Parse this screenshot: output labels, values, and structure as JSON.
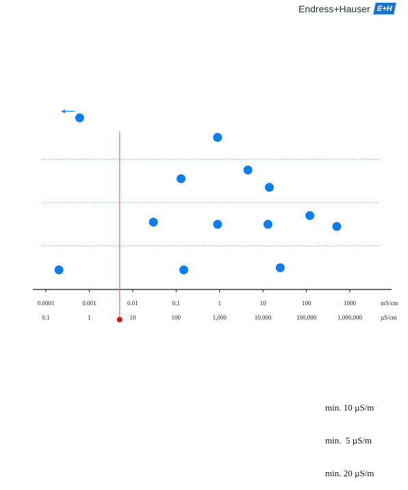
{
  "brand": {
    "name": "Endress+Hauser",
    "mark": "E+H",
    "logo_color": "#1a73c8"
  },
  "chart_data": {
    "type": "scatter",
    "title": "",
    "xlabel": "",
    "ylabel": "",
    "x_scale": "log",
    "xlim": [
      5e-05,
      3000
    ],
    "ylim": [
      0,
      4
    ],
    "grid": {
      "horizontal": true,
      "vertical": false,
      "grid_y": [
        1,
        2,
        3
      ],
      "style": "dotted",
      "color": "#5aa0e6"
    },
    "primary_ticks": {
      "unit": "mS/cm",
      "values": [
        0.0001,
        0.001,
        0.01,
        0.1,
        1,
        10,
        100,
        1000
      ],
      "labels": [
        "0.0001",
        "0.001",
        "0.01",
        "0.1",
        "1",
        "10",
        "100",
        "1000"
      ]
    },
    "secondary_ticks": {
      "unit": "µS/cm",
      "values": [
        0.0001,
        0.001,
        0.01,
        0.1,
        1,
        10,
        100,
        1000
      ],
      "labels": [
        "0.1",
        "1",
        "10",
        "100",
        "1,000",
        "10,000",
        "100,000",
        "1,000,000"
      ]
    },
    "threshold": {
      "x": 0.005,
      "color": "#e87878",
      "marker_color": "#e01010"
    },
    "arrow": {
      "x": 0.0004,
      "y": 4.1,
      "direction": "left",
      "color": "#1a8cf0"
    },
    "series": [
      {
        "color": "#0a7ef0",
        "points": [
          {
            "x": 0.0006,
            "y": 3.95
          },
          {
            "x": 0.9,
            "y": 3.5
          },
          {
            "x": 4.5,
            "y": 2.75
          },
          {
            "x": 0.13,
            "y": 2.55
          },
          {
            "x": 14,
            "y": 2.35
          },
          {
            "x": 0.03,
            "y": 1.55
          },
          {
            "x": 0.9,
            "y": 1.5
          },
          {
            "x": 13,
            "y": 1.5
          },
          {
            "x": 120,
            "y": 1.7
          },
          {
            "x": 500,
            "y": 1.45
          },
          {
            "x": 0.0002,
            "y": 0.45
          },
          {
            "x": 0.15,
            "y": 0.45
          },
          {
            "x": 25,
            "y": 0.5
          }
        ]
      }
    ]
  },
  "minimums": {
    "lines": [
      "min. 10 µS/m",
      "min.  5 µS/m",
      "min. 20 µS/m"
    ]
  }
}
